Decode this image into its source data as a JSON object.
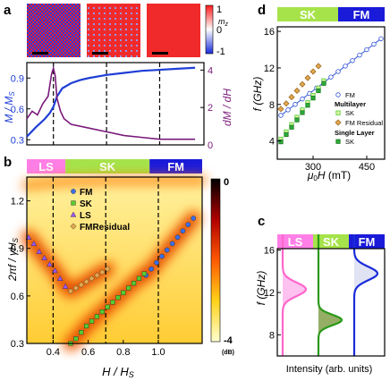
{
  "panels": {
    "a": {
      "letter": "a",
      "colorbar": {
        "label": "m_z",
        "max": "1",
        "min": "-1",
        "zero": "0"
      },
      "left_axis": {
        "label": "M / M_S",
        "ticks": [
          "0.3",
          "0.6",
          "0.9"
        ],
        "color": "#1f3fd6",
        "range": [
          0.25,
          1.05
        ]
      },
      "right_axis": {
        "label": "dM / dH",
        "ticks": [
          "0",
          "2",
          "4"
        ],
        "color": "#7a1a7a",
        "range": [
          0,
          4.4
        ]
      },
      "x_range": [
        0.25,
        1.25
      ],
      "dashed_x": [
        0.4,
        0.7,
        1.0
      ]
    },
    "b": {
      "letter": "b",
      "phases": [
        {
          "name": "LS",
          "color": "#ff7fe6",
          "from": 0.25,
          "to": 0.47
        },
        {
          "name": "SK",
          "color": "#a6e34a",
          "from": 0.47,
          "to": 0.95
        },
        {
          "name": "FM",
          "color": "#1a1ad9",
          "from": 0.95,
          "to": 1.25
        }
      ],
      "ylabel": "2πf / γH_S",
      "xlabel": "H / H_S",
      "x_ticks": [
        "0.4",
        "0.6",
        "0.8",
        "1.0"
      ],
      "y_ticks": [
        "0.3",
        "0.6",
        "0.9",
        "1.2"
      ],
      "colorbar": {
        "top": "0",
        "bottom": "-4",
        "unit": "(dB)"
      },
      "legend": [
        "FM",
        "SK",
        "LS",
        "FMResidual"
      ]
    },
    "c": {
      "letter": "c",
      "phases": [
        {
          "name": "LS",
          "color": "#ff7fe6"
        },
        {
          "name": "SK",
          "color": "#a6e34a"
        },
        {
          "name": "FM",
          "color": "#1a1ad9"
        }
      ],
      "ylabel": "f (GHz)",
      "xlabel": "Intensity (arb. units)",
      "y_ticks": [
        "8",
        "12",
        "16"
      ]
    },
    "d": {
      "letter": "d",
      "phases": [
        {
          "name": "SK",
          "color": "#a6e34a"
        },
        {
          "name": "FM",
          "color": "#1a1ad9"
        }
      ],
      "ylabel": "f (GHz)",
      "xlabel": "μ0H (mT)",
      "x_ticks": [
        "300",
        "450"
      ],
      "y_ticks": [
        "4",
        "8",
        "12",
        "16"
      ],
      "legend": {
        "fm": "FM",
        "multilayer_title": "Multilayer",
        "ml_sk": "SK",
        "ml_fmres": "FM Residual",
        "single_title": "Single Layer",
        "sl_sk": "SK"
      }
    }
  },
  "chart_data": [
    {
      "panel": "a",
      "type": "line",
      "series": [
        {
          "name": "M / M_S",
          "x": [
            0.25,
            0.3,
            0.35,
            0.38,
            0.4,
            0.42,
            0.45,
            0.5,
            0.55,
            0.6,
            0.7,
            0.8,
            0.9,
            1.0,
            1.1,
            1.2
          ],
          "y": [
            0.33,
            0.42,
            0.5,
            0.56,
            0.62,
            0.72,
            0.8,
            0.85,
            0.88,
            0.9,
            0.93,
            0.95,
            0.97,
            0.98,
            0.99,
            1.0
          ]
        },
        {
          "name": "dM / dH",
          "x": [
            0.25,
            0.28,
            0.31,
            0.34,
            0.37,
            0.39,
            0.4,
            0.41,
            0.42,
            0.44,
            0.46,
            0.5,
            0.6,
            0.7,
            0.8,
            0.9,
            1.0,
            1.1,
            1.2
          ],
          "y": [
            1.4,
            1.8,
            1.6,
            2.2,
            2.6,
            3.8,
            4.1,
            3.7,
            2.5,
            1.8,
            1.4,
            1.1,
            0.9,
            0.7,
            0.5,
            0.4,
            0.3,
            0.3,
            0.3
          ]
        }
      ]
    },
    {
      "panel": "b",
      "type": "scatter",
      "xlim": [
        0.25,
        1.25
      ],
      "ylim": [
        0.3,
        1.35
      ],
      "series": [
        {
          "name": "FM",
          "x": [
            0.93,
            0.96,
            0.99,
            1.02,
            1.05,
            1.08,
            1.11,
            1.14,
            1.17,
            1.2
          ],
          "y": [
            0.73,
            0.77,
            0.81,
            0.85,
            0.89,
            0.93,
            0.97,
            1.01,
            1.05,
            1.09
          ]
        },
        {
          "name": "SK",
          "x": [
            0.5,
            0.53,
            0.56,
            0.59,
            0.62,
            0.65,
            0.68,
            0.71,
            0.74,
            0.77,
            0.8,
            0.83,
            0.86,
            0.89,
            0.92
          ],
          "y": [
            0.3,
            0.33,
            0.37,
            0.41,
            0.44,
            0.47,
            0.5,
            0.53,
            0.56,
            0.59,
            0.62,
            0.65,
            0.68,
            0.71,
            0.74
          ]
        },
        {
          "name": "LS",
          "x": [
            0.26,
            0.29,
            0.32,
            0.35,
            0.38,
            0.41,
            0.44,
            0.47
          ],
          "y": [
            0.97,
            0.93,
            0.88,
            0.84,
            0.8,
            0.76,
            0.71,
            0.66
          ]
        },
        {
          "name": "FMResidual",
          "x": [
            0.5,
            0.53,
            0.56,
            0.59,
            0.62,
            0.65,
            0.68,
            0.71
          ],
          "y": [
            0.63,
            0.65,
            0.67,
            0.69,
            0.71,
            0.73,
            0.75,
            0.77
          ]
        }
      ]
    },
    {
      "panel": "c",
      "type": "line",
      "ylim": [
        6,
        17.5
      ],
      "series": [
        {
          "name": "LS",
          "peak_f": 12.3,
          "width": 0.9
        },
        {
          "name": "SK",
          "peak_f": 9.4,
          "width": 0.7
        },
        {
          "name": "FM",
          "peak_f": 13.8,
          "width": 0.9
        }
      ]
    },
    {
      "panel": "d",
      "type": "scatter",
      "xlim": [
        200,
        500
      ],
      "ylim": [
        2,
        16.5
      ],
      "series": [
        {
          "name": "FM",
          "x": [
            210,
            230,
            250,
            270,
            290,
            310,
            330,
            350,
            370,
            390,
            410,
            430,
            450,
            470,
            490
          ],
          "y": [
            6.8,
            7.4,
            8.0,
            8.6,
            9.2,
            9.8,
            10.4,
            11.0,
            11.6,
            12.2,
            12.8,
            13.4,
            14.0,
            14.6,
            15.2
          ]
        },
        {
          "name": "SK (Multilayer)",
          "x": [
            210,
            225,
            240,
            255,
            270,
            285,
            300,
            315,
            330
          ],
          "y": [
            4.2,
            5.0,
            5.8,
            6.6,
            7.4,
            8.2,
            9.0,
            9.8,
            10.6
          ]
        },
        {
          "name": "FM Residual (Multilayer)",
          "x": [
            210,
            225,
            240,
            255,
            270,
            285,
            300,
            315
          ],
          "y": [
            7.5,
            8.1,
            8.8,
            9.5,
            10.2,
            10.9,
            11.6,
            12.2
          ]
        },
        {
          "name": "SK (Single Layer)",
          "x": [
            210,
            225,
            240,
            255,
            270,
            285,
            300,
            315,
            330
          ],
          "y": [
            3.9,
            4.7,
            5.5,
            6.3,
            7.1,
            7.9,
            8.7,
            9.5,
            10.3
          ]
        }
      ]
    }
  ]
}
